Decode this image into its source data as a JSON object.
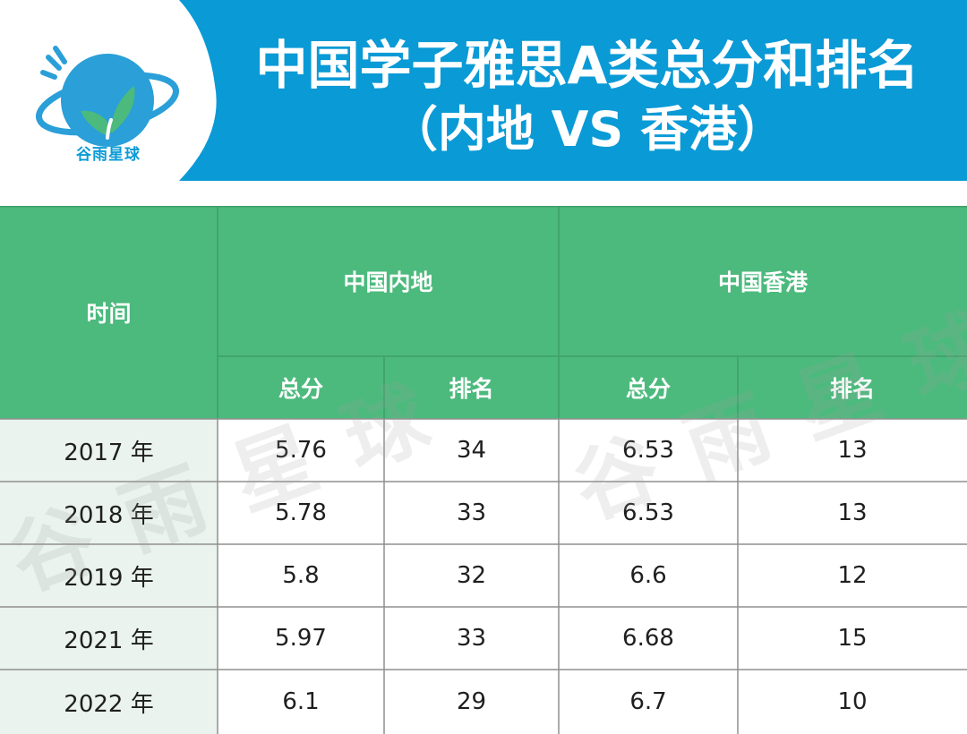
{
  "logo": {
    "text": "谷雨星球",
    "icon": "sprout-globe-icon"
  },
  "title": {
    "line1": "中国学子雅思A类总分和排名",
    "line2": "（内地 VS 香港）"
  },
  "table": {
    "time_header": "时间",
    "groups": [
      "中国内地",
      "中国香港"
    ],
    "sub_headers": [
      "总分",
      "排名",
      "总分",
      "排名"
    ],
    "rows": [
      {
        "year": "2017 年",
        "mainland_score": "5.76",
        "mainland_rank": "34",
        "hk_score": "6.53",
        "hk_rank": "13"
      },
      {
        "year": "2018 年",
        "mainland_score": "5.78",
        "mainland_rank": "33",
        "hk_score": "6.53",
        "hk_rank": "13"
      },
      {
        "year": "2019 年",
        "mainland_score": "5.8",
        "mainland_rank": "32",
        "hk_score": "6.6",
        "hk_rank": "12"
      },
      {
        "year": "2021 年",
        "mainland_score": "5.97",
        "mainland_rank": "33",
        "hk_score": "6.68",
        "hk_rank": "15"
      },
      {
        "year": "2022 年",
        "mainland_score": "6.1",
        "mainland_rank": "29",
        "hk_score": "6.7",
        "hk_rank": "10"
      }
    ]
  },
  "watermark": {
    "text1": "谷雨星球",
    "text2": "谷雨星球"
  },
  "colors": {
    "header_blue": "#0a9ad6",
    "table_green": "#4cba7d",
    "row_label_bg": "#eaf3ee",
    "logo_bg": "#2a9fd8",
    "leaf_green": "#4cba7d"
  }
}
